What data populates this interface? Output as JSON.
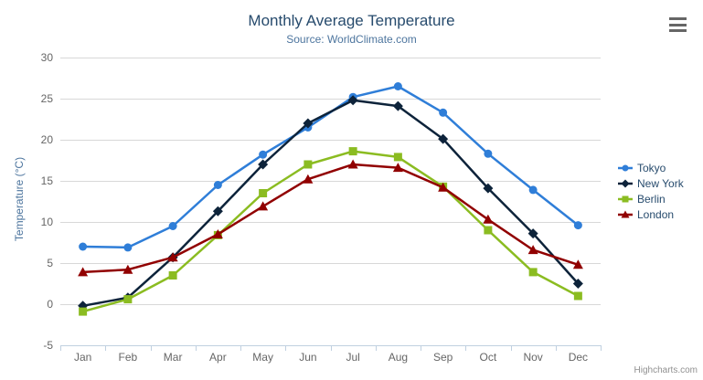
{
  "chart": {
    "title": "Monthly Average Temperature",
    "subtitle": "Source: WorldClimate.com",
    "y_axis_title": "Temperature (°C)",
    "credit": "Highcharts.com",
    "context_menu_icon": "hamburger-menu-icon"
  },
  "chart_data": {
    "type": "line",
    "title": "Monthly Average Temperature",
    "subtitle": "Source: WorldClimate.com",
    "xlabel": "",
    "ylabel": "Temperature (°C)",
    "categories": [
      "Jan",
      "Feb",
      "Mar",
      "Apr",
      "May",
      "Jun",
      "Jul",
      "Aug",
      "Sep",
      "Oct",
      "Nov",
      "Dec"
    ],
    "ylim": [
      -5,
      30
    ],
    "ytick_step": 5,
    "grid": true,
    "legend_position": "right",
    "series": [
      {
        "name": "Tokyo",
        "color": "#2f7ed8",
        "marker": "circle",
        "values": [
          7.0,
          6.9,
          9.5,
          14.5,
          18.2,
          21.5,
          25.2,
          26.5,
          23.3,
          18.3,
          13.9,
          9.6
        ]
      },
      {
        "name": "New York",
        "color": "#0d233a",
        "marker": "diamond",
        "values": [
          -0.2,
          0.8,
          5.7,
          11.3,
          17.0,
          22.0,
          24.8,
          24.1,
          20.1,
          14.1,
          8.6,
          2.5
        ]
      },
      {
        "name": "Berlin",
        "color": "#8bbc21",
        "marker": "square",
        "values": [
          -0.9,
          0.6,
          3.5,
          8.4,
          13.5,
          17.0,
          18.6,
          17.9,
          14.3,
          9.0,
          3.9,
          1.0
        ]
      },
      {
        "name": "London",
        "color": "#910000",
        "marker": "triangle-up",
        "values": [
          3.9,
          4.2,
          5.7,
          8.5,
          11.9,
          15.2,
          17.0,
          16.6,
          14.2,
          10.3,
          6.6,
          4.8
        ]
      }
    ]
  },
  "colors": {
    "title": "#274b6d",
    "subtitle": "#4d759e",
    "axis_label": "#666666",
    "axis_line": "#c0d0e0",
    "gridline": "#d8d8d8",
    "legend_text": "#274b6d",
    "credit": "#909090",
    "menu_icon": "#666666"
  }
}
